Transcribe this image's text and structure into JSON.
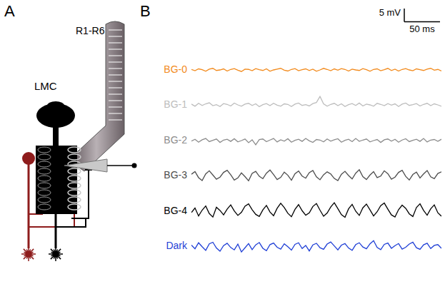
{
  "panel_a": {
    "letter": "A",
    "labels": {
      "photoreceptors": "R1-R6",
      "neuron": "LMC"
    }
  },
  "chart_data": {
    "letter": "B",
    "type": "line",
    "grid": false,
    "tick_labels": false,
    "xlim": [
      0,
      350
    ],
    "ylim": [
      -6.5,
      6.5
    ],
    "scale_bar": {
      "y": 5,
      "y_label": "5 mV",
      "x": 50,
      "x_label": "50 ms"
    },
    "x": [
      0,
      5,
      10,
      15,
      20,
      25,
      30,
      35,
      40,
      45,
      50,
      55,
      60,
      65,
      70,
      75,
      80,
      85,
      90,
      95,
      100,
      105,
      110,
      115,
      120,
      125,
      130,
      135,
      140,
      145,
      150,
      155,
      160,
      165,
      170,
      175,
      180,
      185,
      190,
      195,
      200,
      205,
      210,
      215,
      220,
      225,
      230,
      235,
      240,
      245,
      250,
      255,
      260,
      265,
      270,
      275,
      280,
      285,
      290,
      295,
      300,
      305,
      310,
      315,
      320,
      325,
      330,
      335,
      340,
      345,
      350
    ],
    "series": [
      {
        "name": "BG-0",
        "color": "#f28a1c",
        "values": [
          0.2,
          -0.3,
          0.4,
          0.1,
          -0.5,
          0.3,
          0.6,
          -0.2,
          0.0,
          0.4,
          -0.4,
          0.2,
          0.5,
          -0.1,
          -0.6,
          0.3,
          0.2,
          -0.3,
          0.5,
          0.1,
          -0.2,
          0.4,
          -0.5,
          0.0,
          0.3,
          0.6,
          -0.1,
          -0.4,
          0.2,
          0.5,
          -0.3,
          0.1,
          0.4,
          -0.2,
          0.3,
          -0.5,
          0.0,
          0.6,
          0.2,
          -0.3,
          0.4,
          -0.1,
          0.5,
          0.2,
          -0.4,
          0.3,
          0.0,
          -0.2,
          0.5,
          0.1,
          -0.5,
          0.2,
          0.4,
          -0.3,
          0.1,
          0.6,
          -0.2,
          0.3,
          -0.4,
          0.2,
          0.5,
          0.0,
          -0.3,
          0.4,
          0.1,
          -0.2,
          0.3,
          0.6,
          -0.1,
          0.2,
          -0.4
        ]
      },
      {
        "name": "BG-1",
        "color": "#bdbdbd",
        "values": [
          0.3,
          -0.5,
          0.6,
          -0.2,
          0.4,
          0.8,
          -0.3,
          0.1,
          -0.6,
          0.5,
          0.2,
          -0.4,
          0.7,
          0.0,
          -0.5,
          0.3,
          0.6,
          -0.2,
          0.4,
          -0.7,
          0.1,
          0.5,
          -0.3,
          0.6,
          -0.1,
          -0.5,
          0.4,
          0.2,
          -0.6,
          0.3,
          0.7,
          -0.2,
          0.1,
          -0.4,
          0.5,
          0.9,
          3.2,
          0.4,
          -0.5,
          0.2,
          0.6,
          -0.3,
          0.4,
          -0.6,
          0.1,
          0.5,
          -0.2,
          0.7,
          -0.4,
          0.3,
          0.0,
          -0.5,
          0.6,
          0.2,
          -0.3,
          0.5,
          -0.1,
          0.4,
          -0.6,
          0.3,
          0.7,
          -0.2,
          0.1,
          0.5,
          -0.4,
          0.2,
          0.6,
          -0.3,
          0.4,
          0.0,
          -0.5
        ]
      },
      {
        "name": "BG-2",
        "color": "#8c8c8c",
        "values": [
          -0.2,
          0.5,
          -0.6,
          0.3,
          0.8,
          -0.4,
          0.1,
          0.6,
          -0.7,
          0.2,
          0.5,
          -0.3,
          0.7,
          -0.5,
          0.0,
          0.6,
          -0.8,
          0.3,
          -1.6,
          0.4,
          0.6,
          -0.4,
          0.2,
          0.8,
          -0.5,
          0.3,
          -0.2,
          0.7,
          -0.6,
          0.1,
          0.5,
          -0.3,
          0.8,
          -0.1,
          -0.7,
          0.4,
          0.2,
          -0.5,
          0.6,
          -0.2,
          0.3,
          0.7,
          -0.6,
          0.1,
          0.5,
          -0.4,
          0.8,
          -0.3,
          0.2,
          0.6,
          -0.5,
          0.0,
          0.4,
          -0.7,
          0.3,
          0.6,
          -0.2,
          0.5,
          -0.6,
          0.2,
          0.7,
          -0.4,
          0.1,
          0.5,
          -0.3,
          0.8,
          -0.5,
          0.2,
          0.4,
          -0.3,
          0.5
        ]
      },
      {
        "name": "BG-3",
        "color": "#4d4d4d",
        "values": [
          0.5,
          1.5,
          -0.8,
          -1.9,
          0.6,
          1.8,
          0.2,
          -1.4,
          -0.6,
          1.2,
          2.0,
          0.3,
          -1.7,
          -0.9,
          1.0,
          -0.4,
          -2.0,
          0.8,
          1.6,
          -0.3,
          -1.2,
          0.9,
          2.1,
          0.4,
          -1.5,
          -0.7,
          1.3,
          0.1,
          -1.8,
          0.7,
          1.7,
          -0.2,
          -1.0,
          1.1,
          1.9,
          -0.5,
          -1.6,
          0.3,
          1.4,
          0.6,
          -1.1,
          -1.9,
          0.5,
          1.6,
          0.0,
          -1.3,
          0.9,
          2.2,
          -0.4,
          -1.5,
          0.2,
          1.5,
          -0.8,
          -0.2,
          1.8,
          0.7,
          -1.4,
          -0.6,
          1.2,
          2.0,
          -0.3,
          -1.7,
          0.4,
          1.3,
          -0.9,
          0.6,
          1.9,
          -0.5,
          -1.2,
          0.8,
          1.4
        ]
      },
      {
        "name": "BG-4",
        "color": "#000000",
        "values": [
          -0.5,
          1.2,
          -1.8,
          0.4,
          2.0,
          -0.9,
          -2.2,
          1.5,
          0.3,
          -1.4,
          0.8,
          2.4,
          0.1,
          -1.6,
          -0.4,
          1.9,
          2.8,
          0.6,
          -1.2,
          -2.0,
          0.5,
          2.2,
          -0.3,
          -1.7,
          1.1,
          3.0,
          1.4,
          -0.8,
          -2.1,
          0.7,
          2.5,
          0.2,
          -1.5,
          -0.6,
          1.8,
          2.9,
          0.4,
          -1.9,
          -0.7,
          1.6,
          3.2,
          1.0,
          -1.3,
          -2.3,
          0.9,
          2.6,
          0.0,
          -1.6,
          1.3,
          2.7,
          0.5,
          -1.8,
          -0.2,
          2.1,
          3.1,
          0.8,
          -1.4,
          -2.2,
          0.6,
          2.3,
          1.1,
          -1.0,
          -2.0,
          1.4,
          2.8,
          0.3,
          -1.5,
          0.9,
          2.4,
          -0.6,
          -1.9
        ]
      },
      {
        "name": "Dark",
        "color": "#1f3fd6",
        "values": [
          0.4,
          -1.0,
          1.3,
          -0.2,
          -1.6,
          0.9,
          1.5,
          -0.7,
          -1.9,
          0.2,
          1.1,
          -0.5,
          -1.4,
          0.8,
          -2.2,
          -0.6,
          1.0,
          -1.3,
          0.5,
          1.4,
          -0.8,
          -1.7,
          0.6,
          1.2,
          -0.4,
          -1.1,
          0.9,
          -0.2,
          -1.5,
          0.7,
          1.3,
          -0.9,
          0.3,
          -1.8,
          0.5,
          1.1,
          -0.6,
          -1.2,
          0.8,
          1.6,
          0.1,
          -1.4,
          0.4,
          1.0,
          -0.7,
          -1.6,
          0.6,
          1.3,
          -0.3,
          -1.0,
          0.9,
          2.1,
          -0.5,
          -1.3,
          0.7,
          1.2,
          -0.8,
          0.2,
          1.0,
          -1.1,
          -0.4,
          0.8,
          1.5,
          -0.6,
          -1.2,
          0.5,
          1.1,
          -0.9,
          0.3,
          0.6,
          -0.8
        ]
      }
    ]
  }
}
